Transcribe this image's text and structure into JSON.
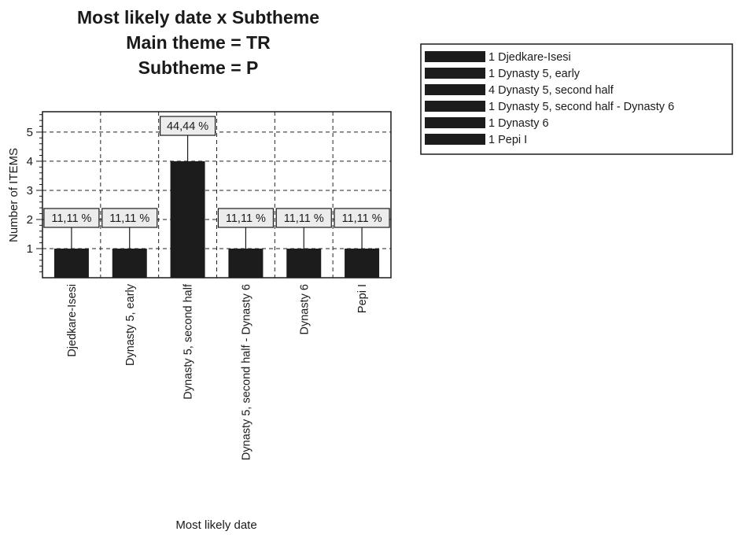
{
  "chart_data": {
    "type": "bar",
    "title": [
      "Most likely date  x  Subtheme",
      "Main theme = TR",
      "Subtheme = P"
    ],
    "xlabel": "Most likely date",
    "ylabel": "Number  of  ITEMS",
    "categories": [
      "Djedkare-Isesi",
      "Dynasty 5, early",
      "Dynasty 5, second half",
      "Dynasty 5, second half - Dynasty 6",
      "Dynasty 6",
      "Pepi I"
    ],
    "values": [
      1,
      1,
      4,
      1,
      1,
      1
    ],
    "data_labels": [
      "11,11 %",
      "11,11 %",
      "44,44 %",
      "11,11 %",
      "11,11 %",
      "11,11 %"
    ],
    "ylim": [
      0,
      5.7
    ],
    "yticks": [
      1,
      2,
      3,
      4,
      5
    ],
    "grid": true,
    "legend_placement": "top-right",
    "legend": [
      "1 Djedkare-Isesi",
      "1 Dynasty 5, early",
      "4 Dynasty 5, second half",
      "1 Dynasty 5, second half - Dynasty 6",
      "1 Dynasty 6",
      "1 Pepi I"
    ],
    "colors": {
      "bar": "#1c1c1c",
      "label_box": "#ececec",
      "legend_swatch": "#1c1c1c",
      "grid": "#222222"
    }
  }
}
